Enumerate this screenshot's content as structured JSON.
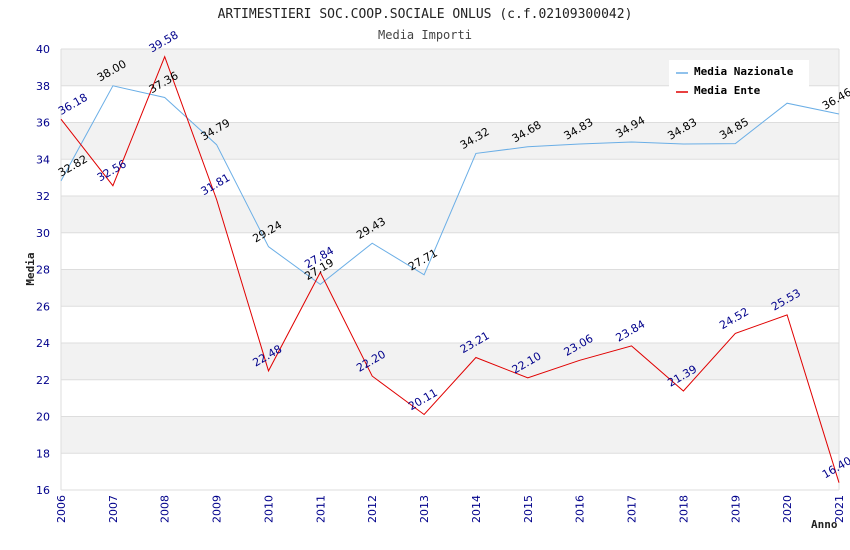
{
  "chart_data": {
    "type": "line",
    "title": "ARTIMESTIERI SOC.COOP.SOCIALE ONLUS (c.f.02109300042)",
    "subtitle": "Media Importi",
    "xlabel": "Anno",
    "ylabel": "Media",
    "ylim": [
      16,
      40
    ],
    "yticks": [
      "16",
      "18",
      "20",
      "22",
      "24",
      "26",
      "28",
      "30",
      "32",
      "34",
      "36",
      "38",
      "40"
    ],
    "categories": [
      "2006",
      "2007",
      "2008",
      "2009",
      "2010",
      "2011",
      "2012",
      "2013",
      "2014",
      "2015",
      "2016",
      "2017",
      "2018",
      "2019",
      "2020",
      "2021"
    ],
    "grid": "horizontal alternating bands",
    "legend_position": "top-right",
    "series": [
      {
        "name": "Media Nazionale",
        "color": "#6aaee6",
        "label_color": "#000000",
        "values": [
          32.82,
          38.0,
          37.36,
          34.79,
          29.24,
          27.19,
          29.43,
          27.71,
          34.32,
          34.68,
          34.83,
          34.94,
          34.83,
          34.85,
          37.05,
          36.46
        ],
        "labels": [
          "32.82",
          "38.00",
          "37.36",
          "34.79",
          "29.24",
          "27.19",
          "29.43",
          "27.71",
          "34.32",
          "34.68",
          "34.83",
          "34.94",
          "34.83",
          "34.85",
          "",
          "36.46"
        ]
      },
      {
        "name": "Media Ente",
        "color": "#e00000",
        "label_color": "#00008b",
        "values": [
          36.18,
          32.56,
          39.58,
          31.81,
          22.48,
          27.84,
          22.2,
          20.11,
          23.21,
          22.1,
          23.06,
          23.84,
          21.39,
          24.52,
          25.53,
          16.4
        ],
        "labels": [
          "36.18",
          "32.56",
          "39.58",
          "31.81",
          "22.48",
          "27.84",
          "22.20",
          "20.11",
          "23.21",
          "22.10",
          "23.06",
          "23.84",
          "21.39",
          "24.52",
          "25.53",
          "16.40"
        ]
      }
    ]
  }
}
